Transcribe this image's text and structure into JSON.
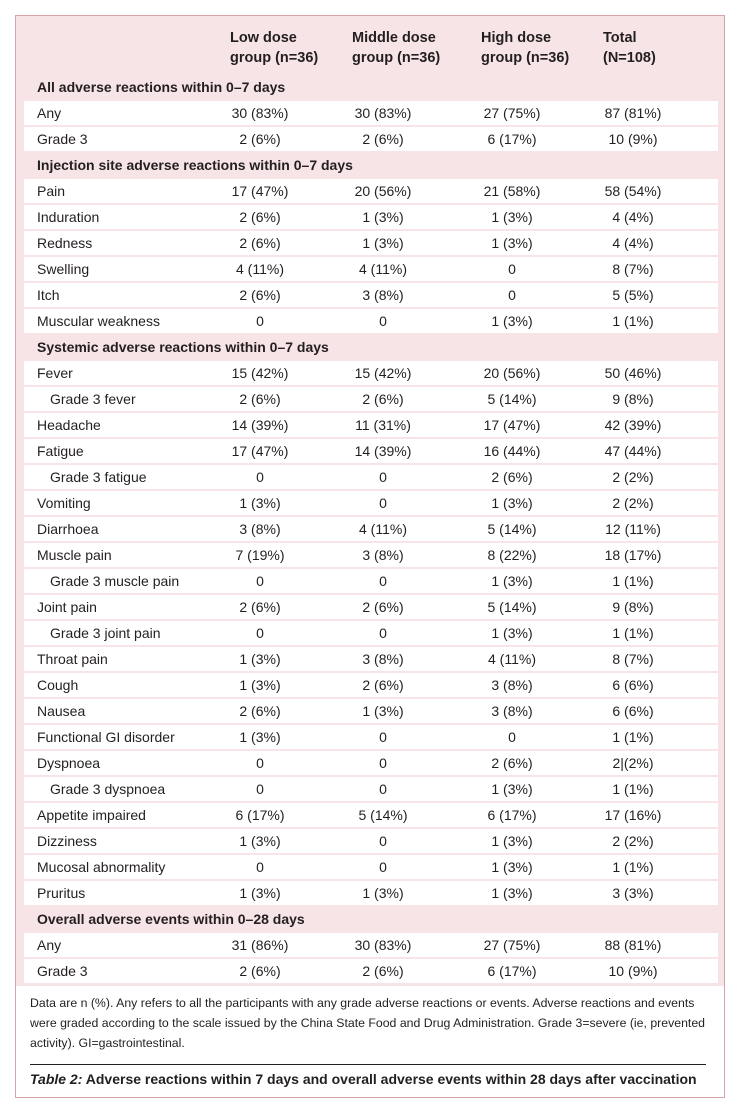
{
  "table": {
    "header": [
      "Low dose group (n=36)",
      "Middle dose group (n=36)",
      "High dose group (n=36)",
      "Total (N=108)"
    ],
    "sections": [
      {
        "title": "All adverse reactions within 0–7 days",
        "rows": [
          [
            "Any",
            "30 (83%)",
            "30 (83%)",
            "27 (75%)",
            "87 (81%)"
          ],
          [
            "Grade 3",
            "2 (6%)",
            "2 (6%)",
            "6 (17%)",
            "10 (9%)"
          ]
        ]
      },
      {
        "title": "Injection site adverse reactions within 0–7 days",
        "rows": [
          [
            "Pain",
            "17 (47%)",
            "20 (56%)",
            "21 (58%)",
            "58 (54%)"
          ],
          [
            "Induration",
            "2 (6%)",
            "1 (3%)",
            "1 (3%)",
            "4 (4%)"
          ],
          [
            "Redness",
            "2 (6%)",
            "1 (3%)",
            "1 (3%)",
            "4 (4%)"
          ],
          [
            "Swelling",
            "4 (11%)",
            "4 (11%)",
            "0",
            "8 (7%)"
          ],
          [
            "Itch",
            "2 (6%)",
            "3 (8%)",
            "0",
            "5 (5%)"
          ],
          [
            "Muscular weakness",
            "0",
            "0",
            "1 (3%)",
            "1 (1%)"
          ]
        ]
      },
      {
        "title": "Systemic adverse reactions within 0–7 days",
        "rows": [
          [
            "Fever",
            "15 (42%)",
            "15 (42%)",
            "20 (56%)",
            "50 (46%)"
          ],
          [
            "Grade 3 fever",
            "2 (6%)",
            "2 (6%)",
            "5 (14%)",
            "9 (8%)"
          ],
          [
            "Headache",
            "14 (39%)",
            "11 (31%)",
            "17 (47%)",
            "42 (39%)"
          ],
          [
            "Fatigue",
            "17 (47%)",
            "14 (39%)",
            "16 (44%)",
            "47 (44%)"
          ],
          [
            "Grade 3 fatigue",
            "0",
            "0",
            "2 (6%)",
            "2 (2%)"
          ],
          [
            "Vomiting",
            "1 (3%)",
            "0",
            "1 (3%)",
            "2 (2%)"
          ],
          [
            "Diarrhoea",
            "3 (8%)",
            "4 (11%)",
            "5 (14%)",
            "12 (11%)"
          ],
          [
            "Muscle pain",
            "7 (19%)",
            "3 (8%)",
            "8 (22%)",
            "18 (17%)"
          ],
          [
            "Grade 3 muscle pain",
            "0",
            "0",
            "1 (3%)",
            "1 (1%)"
          ],
          [
            "Joint pain",
            "2 (6%)",
            "2 (6%)",
            "5 (14%)",
            "9 (8%)"
          ],
          [
            "Grade 3 joint pain",
            "0",
            "0",
            "1 (3%)",
            "1 (1%)"
          ],
          [
            "Throat pain",
            "1 (3%)",
            "3 (8%)",
            "4 (11%)",
            "8 (7%)"
          ],
          [
            "Cough",
            "1 (3%)",
            "2 (6%)",
            "3 (8%)",
            "6 (6%)"
          ],
          [
            "Nausea",
            "2 (6%)",
            "1 (3%)",
            "3 (8%)",
            "6 (6%)"
          ],
          [
            "Functional GI disorder",
            "1 (3%)",
            "0",
            "0",
            "1 (1%)"
          ],
          [
            "Dyspnoea",
            "0",
            "0",
            "2 (6%)",
            "2|(2%)"
          ],
          [
            "Grade 3 dyspnoea",
            "0",
            "0",
            "1 (3%)",
            "1 (1%)"
          ],
          [
            "Appetite impaired",
            "6 (17%)",
            "5 (14%)",
            "6 (17%)",
            "17 (16%)"
          ],
          [
            "Dizziness",
            "1 (3%)",
            "0",
            "1 (3%)",
            "2 (2%)"
          ],
          [
            "Mucosal abnormality",
            "0",
            "0",
            "1 (3%)",
            "1 (1%)"
          ],
          [
            "Pruritus",
            "1 (3%)",
            "1 (3%)",
            "1 (3%)",
            "3 (3%)"
          ]
        ]
      },
      {
        "title": "Overall adverse events within 0–28 days",
        "rows": [
          [
            "Any",
            "31 (86%)",
            "30 (83%)",
            "27 (75%)",
            "88 (81%)"
          ],
          [
            "Grade 3",
            "2 (6%)",
            "2 (6%)",
            "6 (17%)",
            "10 (9%)"
          ]
        ]
      }
    ]
  },
  "footnote": "Data are n (%). Any refers to all the participants with any grade adverse reactions or events. Adverse reactions and events were graded according to the scale issued by the China State Food and Drug Administration. Grade 3=severe (ie, prevented activity). GI=gastrointestinal.",
  "caption": {
    "label": "Table 2:",
    "text": "Adverse reactions within 7 days and overall adverse events within 28 days after vaccination"
  }
}
